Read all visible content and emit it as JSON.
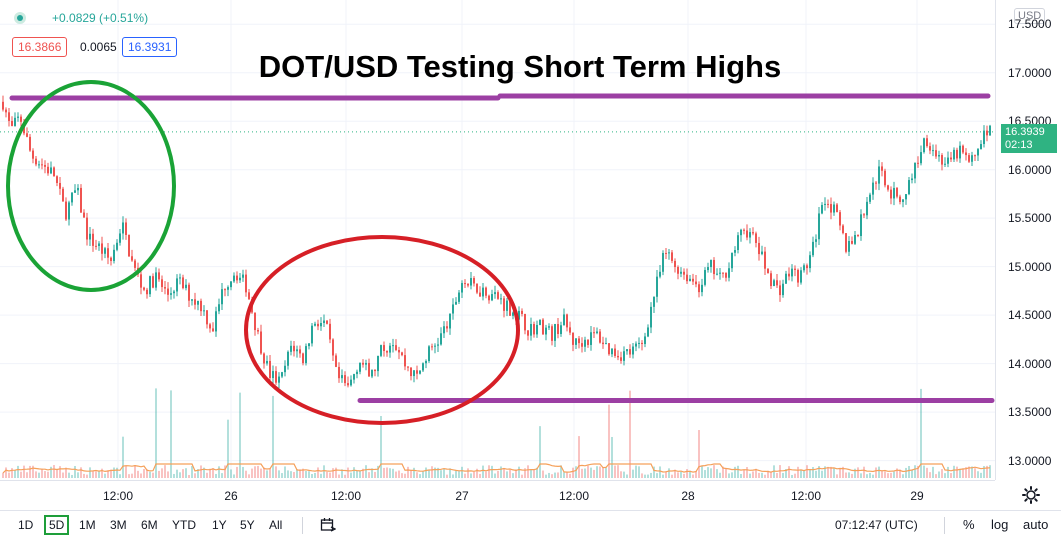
{
  "legend": {
    "change": "+0.0829 (+0.51%)",
    "bid": "16.3866",
    "spread": "0.0065",
    "ask": "16.3931",
    "status_icon": "circle-dot-icon"
  },
  "currency_label": "USD",
  "current_price": {
    "value": "16.3939",
    "countdown": "02:13"
  },
  "bottom_bar": {
    "ranges": [
      "1D",
      "5D",
      "1M",
      "3M",
      "6M",
      "YTD",
      "1Y",
      "5Y",
      "All"
    ],
    "active_range": "5D",
    "calendar_icon": "calendar-range-icon",
    "clock": "07:12:47 (UTC)",
    "percent": "%",
    "log": "log",
    "auto": "auto"
  },
  "settings_icon": "gear-icon",
  "colors": {
    "up": "#26a69a",
    "down": "#ef5350",
    "resistance": "#9c3fa3",
    "green_circle": "#1aa336",
    "red_circle": "#d61f26",
    "price_badge": "#2fb382"
  },
  "chart_data": {
    "type": "candlestick",
    "title": "DOT/USD Testing Short Term Highs",
    "y_ticks": [
      "17.5000",
      "17.0000",
      "16.5000",
      "16.0000",
      "15.5000",
      "15.0000",
      "14.5000",
      "14.0000",
      "13.5000",
      "13.0000"
    ],
    "x_ticks": [
      "12:00",
      "26",
      "12:00",
      "27",
      "12:00",
      "28",
      "12:00",
      "29"
    ],
    "ylim": [
      12.8,
      17.75
    ],
    "resistance_level": 16.75,
    "support_level": 13.62,
    "current_price_line": 16.39,
    "price_path": [
      [
        0,
        16.7
      ],
      [
        0.7,
        16.4
      ],
      [
        1.5,
        16.55
      ],
      [
        2.5,
        16.15
      ],
      [
        3.5,
        16.05
      ],
      [
        4.5,
        15.95
      ],
      [
        5.5,
        15.55
      ],
      [
        6.5,
        15.8
      ],
      [
        7.5,
        15.3
      ],
      [
        8.5,
        15.2
      ],
      [
        9.5,
        15.05
      ],
      [
        10.5,
        15.45
      ],
      [
        11.5,
        15.0
      ],
      [
        12.5,
        14.75
      ],
      [
        13.5,
        14.9
      ],
      [
        14.5,
        14.7
      ],
      [
        15.5,
        14.85
      ],
      [
        16.5,
        14.7
      ],
      [
        17.5,
        14.6
      ],
      [
        18.5,
        14.35
      ],
      [
        19.5,
        14.8
      ],
      [
        20.5,
        14.95
      ],
      [
        21.5,
        14.8
      ],
      [
        22.5,
        14.3
      ],
      [
        23.5,
        13.9
      ],
      [
        24.5,
        13.8
      ],
      [
        25.5,
        14.2
      ],
      [
        26.5,
        14.05
      ],
      [
        27.5,
        14.45
      ],
      [
        28.5,
        14.4
      ],
      [
        29.5,
        13.85
      ],
      [
        30.5,
        13.75
      ],
      [
        31.5,
        14.05
      ],
      [
        32.5,
        13.85
      ],
      [
        33.5,
        14.15
      ],
      [
        34.5,
        14.25
      ],
      [
        35.5,
        14.0
      ],
      [
        36.5,
        13.85
      ],
      [
        37.5,
        14.1
      ],
      [
        38.5,
        14.25
      ],
      [
        39.5,
        14.45
      ],
      [
        40.5,
        14.85
      ],
      [
        41.5,
        14.8
      ],
      [
        42.5,
        14.75
      ],
      [
        43.5,
        14.7
      ],
      [
        44.5,
        14.6
      ],
      [
        45.5,
        14.5
      ],
      [
        46.5,
        14.35
      ],
      [
        47.5,
        14.4
      ],
      [
        48.5,
        14.3
      ],
      [
        49.5,
        14.45
      ],
      [
        50.5,
        14.2
      ],
      [
        51.5,
        14.25
      ],
      [
        52.5,
        14.3
      ],
      [
        53.5,
        14.15
      ],
      [
        54.5,
        14.1
      ],
      [
        55.5,
        14.12
      ],
      [
        56.5,
        14.2
      ],
      [
        57.5,
        14.7
      ],
      [
        58.5,
        15.15
      ],
      [
        59.5,
        15.0
      ],
      [
        60.5,
        14.9
      ],
      [
        61.5,
        14.8
      ],
      [
        62.5,
        15.0
      ],
      [
        63.5,
        14.85
      ],
      [
        64.5,
        15.15
      ],
      [
        65.5,
        15.4
      ],
      [
        66.5,
        15.25
      ],
      [
        67.5,
        14.95
      ],
      [
        68.5,
        14.75
      ],
      [
        69.5,
        14.95
      ],
      [
        70.5,
        14.9
      ],
      [
        71.5,
        15.15
      ],
      [
        72.5,
        15.75
      ],
      [
        73.5,
        15.55
      ],
      [
        74.5,
        15.2
      ],
      [
        75.5,
        15.35
      ],
      [
        76.5,
        15.75
      ],
      [
        77.5,
        16.0
      ],
      [
        78.5,
        15.75
      ],
      [
        79.5,
        15.7
      ],
      [
        80.5,
        16.0
      ],
      [
        81.5,
        16.35
      ],
      [
        82.5,
        16.15
      ],
      [
        83.5,
        16.05
      ],
      [
        84.5,
        16.2
      ],
      [
        85.5,
        16.05
      ],
      [
        86.5,
        16.35
      ],
      [
        87.2,
        16.39
      ]
    ]
  }
}
